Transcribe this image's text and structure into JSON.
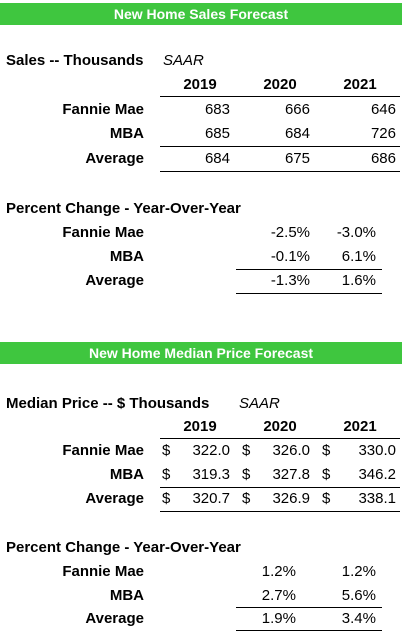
{
  "sales": {
    "banner": "New Home Sales Forecast",
    "title": "Sales -- Thousands",
    "saar": "SAAR",
    "years": [
      "2019",
      "2020",
      "2021"
    ],
    "rows": [
      {
        "label": "Fannie Mae",
        "values": [
          "683",
          "666",
          "646"
        ]
      },
      {
        "label": "MBA",
        "values": [
          "685",
          "684",
          "726"
        ]
      },
      {
        "label": "Average",
        "values": [
          "684",
          "675",
          "686"
        ]
      }
    ],
    "pct_title": "Percent Change - Year-Over-Year",
    "pct_rows": [
      {
        "label": "Fannie Mae",
        "values": [
          "-2.5%",
          "-3.0%"
        ]
      },
      {
        "label": "MBA",
        "values": [
          "-0.1%",
          "6.1%"
        ]
      },
      {
        "label": "Average",
        "values": [
          "-1.3%",
          "1.6%"
        ]
      }
    ]
  },
  "price": {
    "banner": "New Home Median Price Forecast",
    "title": "Median Price -- $ Thousands",
    "saar": "SAAR",
    "years": [
      "2019",
      "2020",
      "2021"
    ],
    "currency": "$",
    "rows": [
      {
        "label": "Fannie Mae",
        "values": [
          "322.0",
          "326.0",
          "330.0"
        ]
      },
      {
        "label": "MBA",
        "values": [
          "319.3",
          "327.8",
          "346.2"
        ]
      },
      {
        "label": "Average",
        "values": [
          "320.7",
          "326.9",
          "338.1"
        ]
      }
    ],
    "pct_title": "Percent Change - Year-Over-Year",
    "pct_rows": [
      {
        "label": "Fannie Mae",
        "values": [
          "1.2%",
          "1.2%"
        ]
      },
      {
        "label": "MBA",
        "values": [
          "2.7%",
          "5.6%"
        ]
      },
      {
        "label": "Average",
        "values": [
          "1.9%",
          "3.4%"
        ]
      }
    ]
  }
}
